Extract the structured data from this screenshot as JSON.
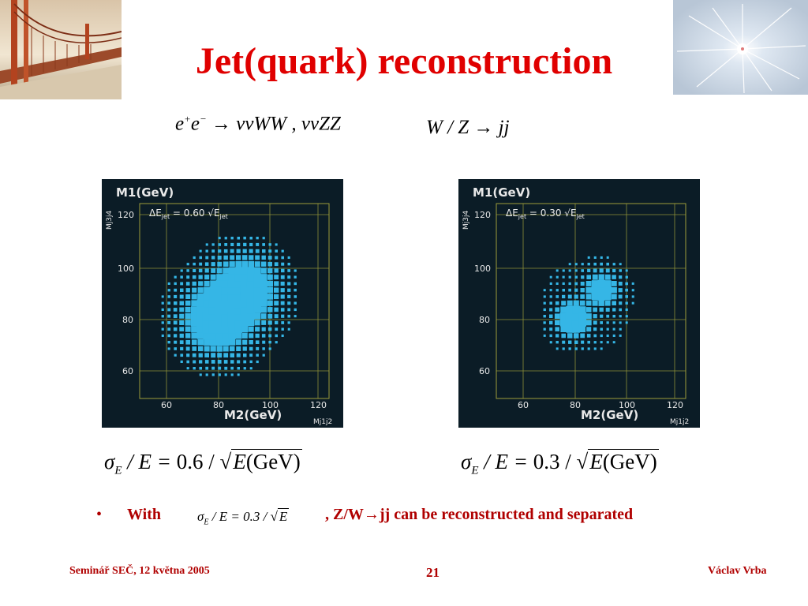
{
  "slide": {
    "title": "Jet(quark) reconstruction",
    "process_eq": {
      "lhs": "e",
      "lhs_sup1": "+",
      "lhs2": "e",
      "lhs_sup2": "−",
      "arrow": "→",
      "rhs": "ννWW , ννZZ"
    },
    "decay_eq": "W / Z → jj",
    "plot_left": {
      "y_title": "M1(GeV)",
      "y_side": "Mj3j4",
      "x_title": "M2(GeV)",
      "x_side": "Mj1j2",
      "annotation": "ΔE",
      "annotation_sub": "jet",
      "annotation_value": " = 0.60 √E",
      "annotation_value_sub": "jet",
      "y_ticks": [
        "120",
        "100",
        "80",
        "60"
      ],
      "x_ticks": [
        "60",
        "80",
        "100",
        "120"
      ]
    },
    "plot_right": {
      "y_title": "M1(GeV)",
      "y_side": "Mj3j4",
      "x_title": "M2(GeV)",
      "x_side": "Mj1j2",
      "annotation": "ΔE",
      "annotation_sub": "jet",
      "annotation_value": " = 0.30 √E",
      "annotation_value_sub": "jet",
      "y_ticks": [
        "120",
        "100",
        "80",
        "60"
      ],
      "x_ticks": [
        "60",
        "80",
        "100",
        "120"
      ]
    },
    "formula_left": {
      "sigma": "σ",
      "sub": "E",
      "mid": " / E = ",
      "coef": "0.6",
      "slash": " / ",
      "root": "E",
      "unit": "(GeV)"
    },
    "formula_right": {
      "sigma": "σ",
      "sub": "E",
      "mid": " / E = ",
      "coef": "0.3",
      "slash": " / ",
      "root": "E",
      "unit": "(GeV)"
    },
    "bullet": {
      "dot": "•",
      "with": "With",
      "inline_formula": {
        "sigma": "σ",
        "sub": "E",
        "mid": " / E = 0.3 / ",
        "root": "E"
      },
      "rest": ", Z/W→jj can be reconstructed and separated"
    },
    "footer": {
      "left": "Seminář SEČ, 12 května 2005",
      "page_number": "21",
      "right": "Václav Vrba"
    }
  },
  "colors": {
    "title": "#e00000",
    "footer": "#b00000",
    "plot_bg": "#0b1c26",
    "plot_frame": "#9c9c3a",
    "plot_boxes": "#35b6e6",
    "plot_text": "#e8e8e8"
  }
}
